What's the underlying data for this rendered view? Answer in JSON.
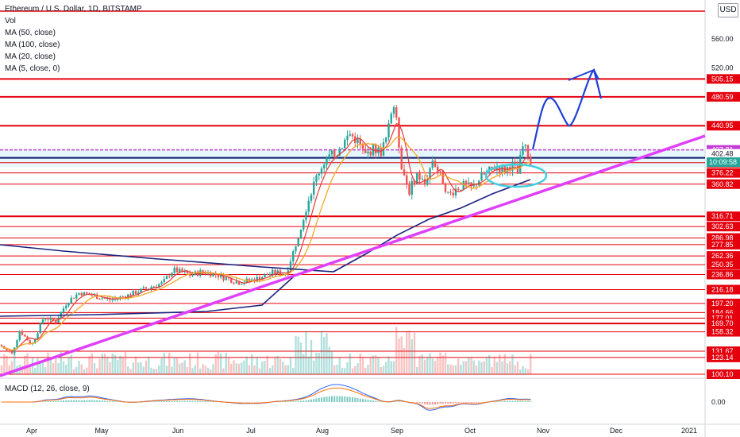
{
  "legend": {
    "symbol": "Ethereum / U.S. Dollar, 1D, BITSTAMP",
    "vol": "Vol",
    "ma50": "MA (50, close)",
    "ma100": "MA (100, close)",
    "ma20": "MA (20, close)",
    "ma5": "MA (5, close, 0)"
  },
  "currency_button": "USD",
  "macd_label": "MACD (12, 26, close, 9)",
  "colors": {
    "level_red": "#e5000d",
    "trendline_magenta": "#e040fb",
    "ma_navy": "#1a237e",
    "ma_orange": "#f5a623",
    "ma_red": "#e53935",
    "up": "#26a69a",
    "down": "#ef5350",
    "projection_blue": "#1f3fd6",
    "ellipse_cyan": "#3fd0e0",
    "zone_fill": "#e6f7fb"
  },
  "chart_data": {
    "type": "candlestick",
    "y_axis_ticks": [
      "560.00",
      "520.00"
    ],
    "x_axis_ticks": [
      "Apr",
      "May",
      "Jun",
      "Jul",
      "Aug",
      "Sep",
      "Oct",
      "Nov",
      "Dec",
      "2021"
    ],
    "horizontal_levels": [
      "505.15",
      "480.59",
      "440.95",
      "407.81",
      "402.48",
      "390.20",
      "376.22",
      "360.82",
      "316.71",
      "302.63",
      "286.98",
      "277.85",
      "262.36",
      "250.35",
      "236.86",
      "216.18",
      "197.20",
      "184.66",
      "177.01",
      "169.70",
      "158.32",
      "131.67",
      "123.14",
      "100.10"
    ],
    "current_price_timer": "10:09:58",
    "macd_axis_tick": "0.00",
    "ylim": [
      100,
      590
    ]
  }
}
